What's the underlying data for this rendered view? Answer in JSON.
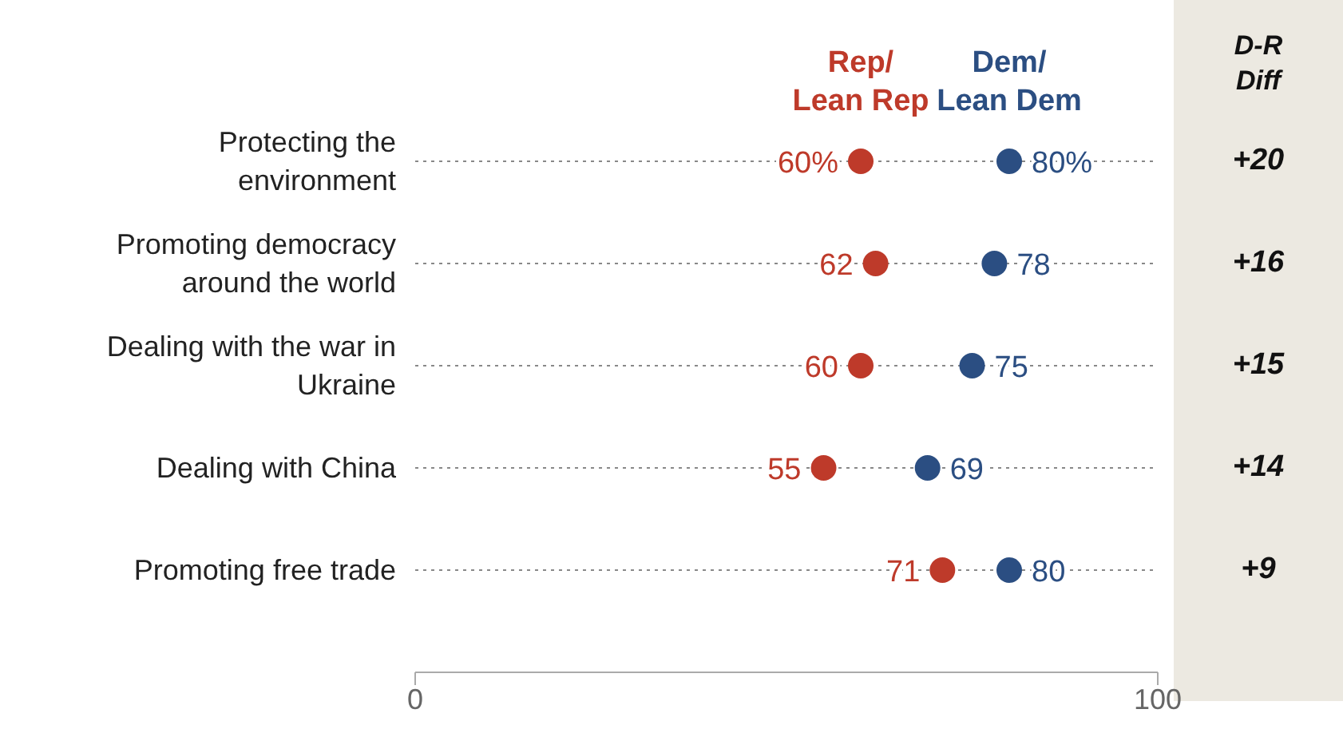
{
  "chart_data": {
    "type": "scatter",
    "orientation": "horizontal",
    "categories": [
      "Protecting the environment",
      "Promoting democracy around the world",
      "Dealing with the war in Ukraine",
      "Dealing with China",
      "Promoting free trade"
    ],
    "series": [
      {
        "name": "Rep/\nLean Rep",
        "color": "#be3a2a",
        "values": [
          60,
          62,
          60,
          55,
          71
        ],
        "value_labels": [
          "60%",
          "62",
          "60",
          "55",
          "71"
        ]
      },
      {
        "name": "Dem/\nLean Dem",
        "color": "#2b4e82",
        "values": [
          80,
          78,
          75,
          69,
          80
        ],
        "value_labels": [
          "80%",
          "78",
          "75",
          "69",
          "80"
        ]
      }
    ],
    "xlim": [
      0,
      100
    ],
    "xticks": [
      0,
      100
    ],
    "grid": "y",
    "line_style": "dotted",
    "marker": "circle",
    "legend": false,
    "annotations": [
      "D-R\nDiff",
      "+20",
      "+16",
      "+15",
      "+14",
      "+9"
    ]
  }
}
